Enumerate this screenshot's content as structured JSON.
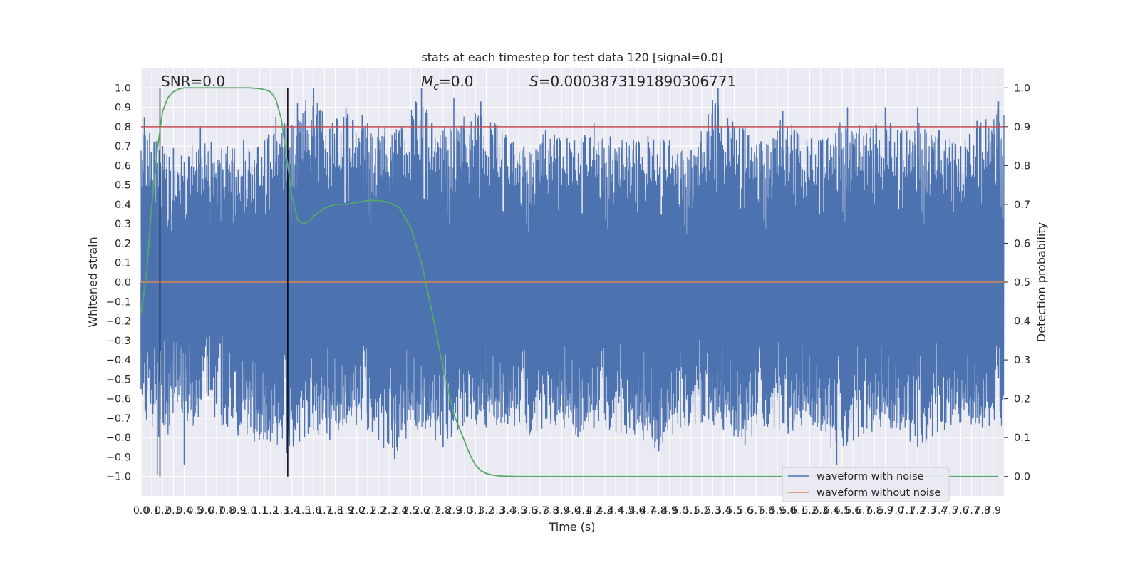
{
  "chart_data": {
    "type": "line",
    "title": "stats at each timestep for test data 120 [signal=0.0]",
    "xlabel": "Time (s)",
    "ylabel": "Whitened strain",
    "ylabel_right": "Detection probability",
    "xlim": [
      0.0,
      8.0
    ],
    "ylim": [
      -1.1,
      1.1
    ],
    "ylim_right": [
      -0.05,
      1.05
    ],
    "grid": true,
    "legend_position": "bottom-right",
    "x_tick_labels": [
      "0.0",
      "0.1",
      "0.2",
      "0.3",
      "0.4",
      "0.5",
      "0.6",
      "0.7",
      "0.8",
      "0.9",
      "1.0",
      "1.1",
      "1.2",
      "1.3",
      "1.4",
      "1.5",
      "1.6",
      "1.7",
      "1.8",
      "1.9",
      "2.0",
      "2.1",
      "2.2",
      "2.3",
      "2.4",
      "2.5",
      "2.6",
      "2.7",
      "2.8",
      "2.9",
      "3.0",
      "3.1",
      "3.2",
      "3.3",
      "3.4",
      "3.5",
      "3.6",
      "3.7",
      "3.8",
      "3.9",
      "4.0",
      "4.1",
      "4.2",
      "4.3",
      "4.4",
      "4.5",
      "4.6",
      "4.7",
      "4.8",
      "4.9",
      "5.0",
      "5.1",
      "5.2",
      "5.3",
      "5.4",
      "5.5",
      "5.6",
      "5.7",
      "5.8",
      "5.9",
      "6.0",
      "6.1",
      "6.2",
      "6.3",
      "6.4",
      "6.5",
      "6.6",
      "6.7",
      "6.8",
      "6.9",
      "7.0",
      "7.1",
      "7.2",
      "7.3",
      "7.4",
      "7.5",
      "7.6",
      "7.7",
      "7.8",
      "7.9"
    ],
    "y_tick_labels": [
      "−1.0",
      "−0.9",
      "−0.8",
      "−0.7",
      "−0.6",
      "−0.5",
      "−0.4",
      "−0.3",
      "−0.2",
      "−0.1",
      "0.0",
      "0.1",
      "0.2",
      "0.3",
      "0.4",
      "0.5",
      "0.6",
      "0.7",
      "0.8",
      "0.9",
      "1.0"
    ],
    "y_right_tick_labels": [
      "0.0",
      "0.1",
      "0.2",
      "0.3",
      "0.4",
      "0.5",
      "0.6",
      "0.7",
      "0.8",
      "0.9",
      "1.0"
    ],
    "annotations": {
      "snr": "SNR=0.0",
      "mc_symbol": "M",
      "mc_sub": "c",
      "mc_value": "=0.0",
      "s_symbol": "S",
      "s_value": "=0.0003873191890306771"
    },
    "series": [
      {
        "name": "waveform with noise",
        "color": "#4c72b0",
        "description_values": "dense noise, amplitude envelope",
        "peaks_pos": [
          [
            0.03,
            0.85
          ],
          [
            0.08,
            0.77
          ],
          [
            0.12,
            0.72
          ],
          [
            0.2,
            0.7
          ],
          [
            0.3,
            0.69
          ],
          [
            0.4,
            0.62
          ],
          [
            0.55,
            0.8
          ],
          [
            0.65,
            0.72
          ],
          [
            0.8,
            0.7
          ],
          [
            0.95,
            0.73
          ],
          [
            1.05,
            0.63
          ],
          [
            1.18,
            0.73
          ],
          [
            1.25,
            0.85
          ],
          [
            1.33,
            0.82
          ],
          [
            1.45,
            0.92
          ],
          [
            1.6,
            1.0
          ],
          [
            1.75,
            0.79
          ],
          [
            1.9,
            0.9
          ],
          [
            2.05,
            0.86
          ],
          [
            2.1,
            0.82
          ],
          [
            2.2,
            0.8
          ],
          [
            2.35,
            0.77
          ],
          [
            2.6,
            1.0
          ],
          [
            2.75,
            0.72
          ],
          [
            2.9,
            0.95
          ],
          [
            3.0,
            0.78
          ],
          [
            3.15,
            0.93
          ],
          [
            3.3,
            0.81
          ],
          [
            3.45,
            0.72
          ],
          [
            3.55,
            0.7
          ],
          [
            3.75,
            0.78
          ],
          [
            3.95,
            0.74
          ],
          [
            4.1,
            0.72
          ],
          [
            4.2,
            0.82
          ],
          [
            4.35,
            0.75
          ],
          [
            4.5,
            0.72
          ],
          [
            4.7,
            0.75
          ],
          [
            4.9,
            0.73
          ],
          [
            5.1,
            0.68
          ],
          [
            5.35,
            1.0
          ],
          [
            5.5,
            0.8
          ],
          [
            5.6,
            0.8
          ],
          [
            5.75,
            0.72
          ],
          [
            5.95,
            0.88
          ],
          [
            6.1,
            0.76
          ],
          [
            6.3,
            0.73
          ],
          [
            6.55,
            0.9
          ],
          [
            6.7,
            0.75
          ],
          [
            6.9,
            0.9
          ],
          [
            7.05,
            0.72
          ],
          [
            7.2,
            0.9
          ],
          [
            7.4,
            0.78
          ],
          [
            7.6,
            0.7
          ],
          [
            7.75,
            0.83
          ],
          [
            7.95,
            0.93
          ]
        ],
        "peaks_neg": [
          [
            0.0,
            -0.55
          ],
          [
            0.15,
            -0.99
          ],
          [
            0.25,
            -0.62
          ],
          [
            0.4,
            -0.94
          ],
          [
            0.55,
            -0.6
          ],
          [
            0.75,
            -0.74
          ],
          [
            0.9,
            -0.79
          ],
          [
            1.05,
            -0.82
          ],
          [
            1.2,
            -0.82
          ],
          [
            1.35,
            -0.88
          ],
          [
            1.55,
            -0.78
          ],
          [
            1.75,
            -0.81
          ],
          [
            1.9,
            -0.72
          ],
          [
            2.1,
            -0.76
          ],
          [
            2.35,
            -0.91
          ],
          [
            2.55,
            -0.74
          ],
          [
            2.8,
            -0.85
          ],
          [
            3.0,
            -0.72
          ],
          [
            3.2,
            -0.75
          ],
          [
            3.4,
            -0.73
          ],
          [
            3.6,
            -0.79
          ],
          [
            3.8,
            -0.73
          ],
          [
            4.05,
            -0.8
          ],
          [
            4.2,
            -0.75
          ],
          [
            4.5,
            -0.78
          ],
          [
            4.8,
            -0.87
          ],
          [
            5.0,
            -0.75
          ],
          [
            5.2,
            -0.72
          ],
          [
            5.4,
            -0.76
          ],
          [
            5.6,
            -0.84
          ],
          [
            5.8,
            -0.73
          ],
          [
            6.0,
            -0.78
          ],
          [
            6.25,
            -0.72
          ],
          [
            6.45,
            -0.94
          ],
          [
            6.55,
            -0.8
          ],
          [
            6.7,
            -0.78
          ],
          [
            6.95,
            -0.75
          ],
          [
            7.2,
            -0.85
          ],
          [
            7.45,
            -0.76
          ],
          [
            7.6,
            -0.72
          ],
          [
            7.8,
            -0.75
          ]
        ]
      },
      {
        "name": "waveform without noise",
        "color": "#dd8452",
        "x": [
          0.0,
          8.0
        ],
        "y": [
          0.0,
          0.0
        ]
      },
      {
        "name": "detection probability",
        "axis": "right",
        "color": "#55a868",
        "x": [
          0.0,
          0.05,
          0.1,
          0.15,
          0.2,
          0.25,
          0.3,
          0.35,
          0.4,
          0.45,
          0.5,
          0.6,
          0.7,
          0.8,
          0.9,
          1.0,
          1.05,
          1.1,
          1.15,
          1.2,
          1.25,
          1.3,
          1.35,
          1.4,
          1.45,
          1.5,
          1.55,
          1.6,
          1.7,
          1.8,
          1.9,
          2.0,
          2.1,
          2.2,
          2.3,
          2.4,
          2.5,
          2.6,
          2.7,
          2.8,
          2.9,
          3.0,
          3.05,
          3.1,
          3.15,
          3.2,
          3.25,
          3.3,
          3.35,
          3.4,
          3.5,
          3.6,
          3.8,
          4.0,
          5.0,
          6.0,
          7.0,
          7.95
        ],
        "y": [
          0.42,
          0.52,
          0.7,
          0.84,
          0.94,
          0.975,
          0.99,
          0.997,
          1.0,
          1.0,
          1.0,
          1.0,
          1.0,
          1.0,
          1.0,
          1.0,
          0.999,
          0.998,
          0.995,
          0.99,
          0.97,
          0.92,
          0.82,
          0.72,
          0.66,
          0.65,
          0.655,
          0.67,
          0.69,
          0.7,
          0.7,
          0.705,
          0.71,
          0.71,
          0.705,
          0.69,
          0.64,
          0.55,
          0.42,
          0.28,
          0.16,
          0.09,
          0.055,
          0.03,
          0.015,
          0.008,
          0.004,
          0.002,
          0.001,
          0.0005,
          0.0,
          0.0,
          0.0,
          0.0,
          0.0,
          0.0,
          0.0,
          0.0
        ]
      },
      {
        "name": "threshold",
        "axis": "right",
        "color": "#c44e52",
        "y_value": 0.9
      }
    ],
    "vertical_lines_x": [
      0.175,
      1.36
    ],
    "legend": [
      "waveform with noise",
      "waveform without noise"
    ]
  }
}
